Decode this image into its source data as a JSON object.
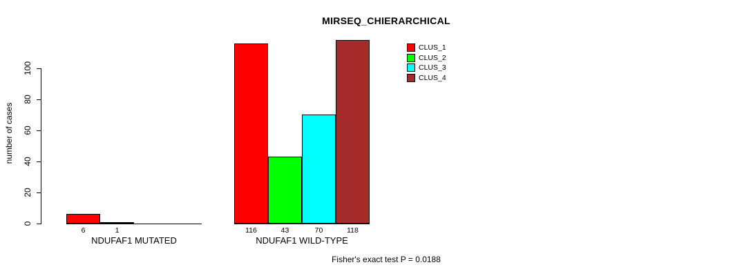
{
  "chart_data": {
    "type": "bar",
    "grouped": true,
    "title": "MIRSEQ_CHIERARCHICAL",
    "ylabel": "number of cases",
    "xlabel": "",
    "yticks": [
      0,
      20,
      40,
      60,
      80,
      100
    ],
    "ylim": [
      0,
      100
    ],
    "grid": false,
    "legend_position": "top-right-inside",
    "categories": [
      "NDUFAF1 MUTATED",
      "NDUFAF1 WILD-TYPE"
    ],
    "series": [
      {
        "name": "CLUS_1",
        "color": "#FF0000",
        "values": [
          6,
          116
        ]
      },
      {
        "name": "CLUS_2",
        "color": "#00FF00",
        "values": [
          1,
          43
        ]
      },
      {
        "name": "CLUS_3",
        "color": "#00FFFF",
        "values": [
          0,
          70
        ]
      },
      {
        "name": "CLUS_4",
        "color": "#A52A2A",
        "values": [
          0,
          118
        ]
      }
    ],
    "show_value_labels": true,
    "hide_zero_value_labels": true,
    "annotation": "Fisher's exact test P = 0.0188"
  },
  "colors": {
    "background": "#FFFFFF",
    "axis": "#000000",
    "text": "#000000"
  }
}
